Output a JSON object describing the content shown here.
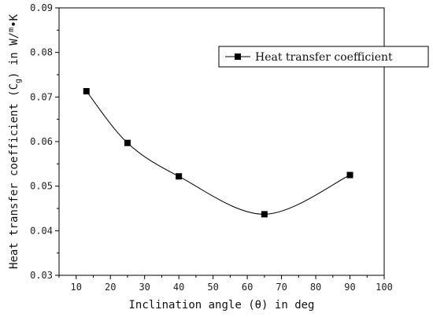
{
  "chart_data": {
    "type": "line",
    "xlabel": "Inclination angle (θ) in deg",
    "ylabel": "Heat transfer coefficient (C",
    "ylabel_sub": "g",
    "ylabel_unit": ") in W/",
    "ylabel_unit_sup": "m",
    "ylabel_unit_tail": "•K",
    "xlim": [
      5,
      100
    ],
    "ylim": [
      0.03,
      0.09
    ],
    "xticks": [
      "10",
      "20",
      "30",
      "40",
      "50",
      "60",
      "70",
      "80",
      "90",
      "100"
    ],
    "yticks": [
      "0.03",
      "0.04",
      "0.05",
      "0.06",
      "0.07",
      "0.08",
      "0.09"
    ],
    "legend_position": "top-right",
    "grid": false,
    "series": [
      {
        "name": "Heat transfer coefficient",
        "marker": "square",
        "color": "#000000",
        "x": [
          13,
          25,
          40,
          65,
          90
        ],
        "y": [
          0.0713,
          0.0597,
          0.0522,
          0.0437,
          0.0525
        ]
      }
    ]
  }
}
